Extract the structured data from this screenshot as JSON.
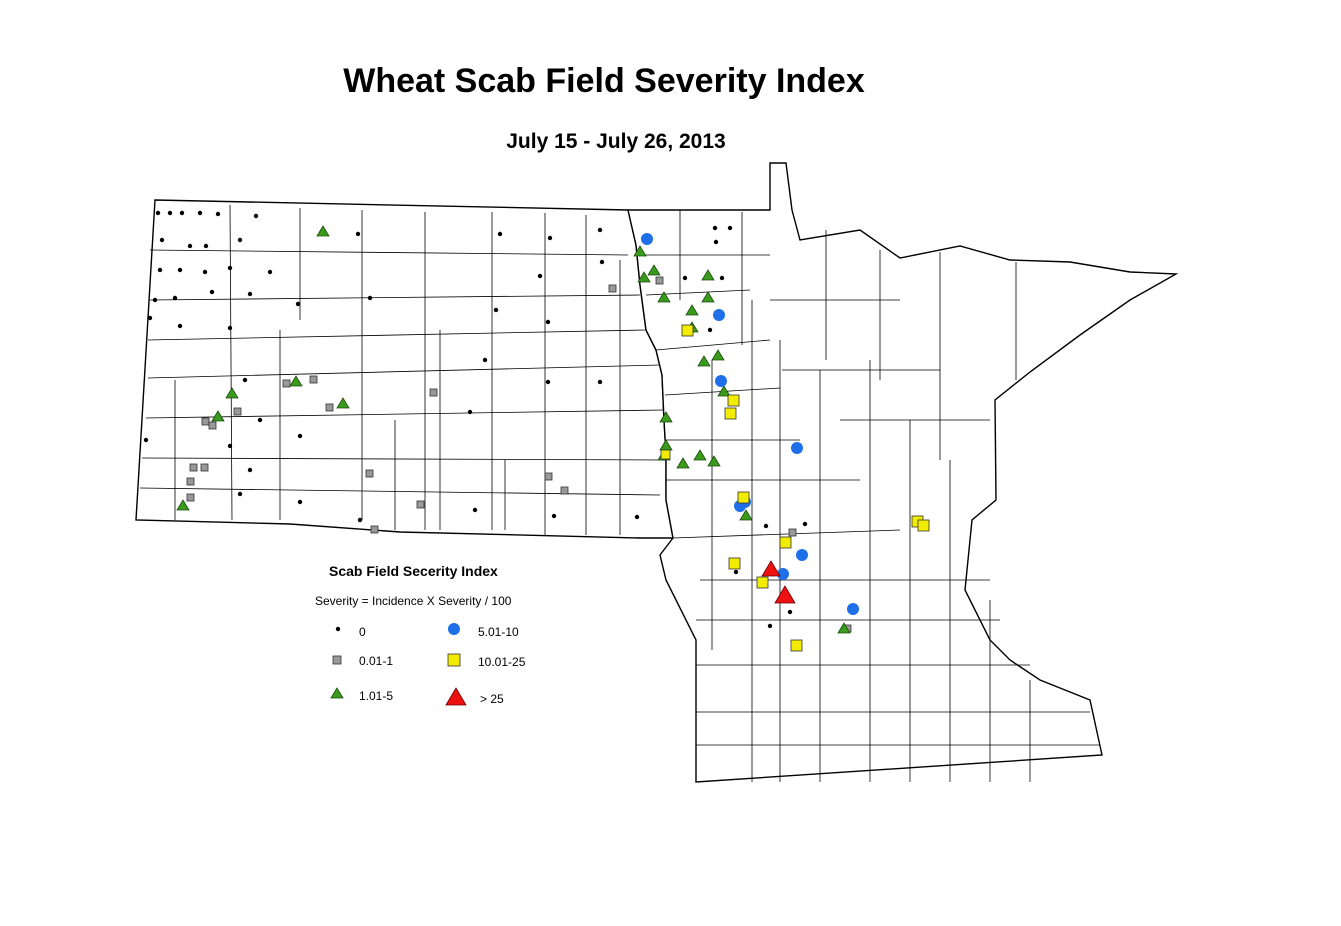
{
  "title": "Wheat Scab Field Severity Index",
  "subtitle": "July 15 - July 26, 2013",
  "legend": {
    "title": "Scab Field Secerity Index",
    "formula": "Severity = Incidence X Severity / 100",
    "classes": [
      {
        "label": "0",
        "symbol": "dot",
        "color": "#000000"
      },
      {
        "label": "0.01-1",
        "symbol": "square",
        "color": "#999999"
      },
      {
        "label": "1.01-5",
        "symbol": "triangle",
        "color": "#3a9a1c"
      },
      {
        "label": "5.01-10",
        "symbol": "circle",
        "color": "#1f6fe8"
      },
      {
        "label": "10.01-25",
        "symbol": "square",
        "color": "#f2ec00"
      },
      {
        "label": "> 25",
        "symbol": "triangle",
        "color": "#ee1111"
      }
    ]
  }
}
